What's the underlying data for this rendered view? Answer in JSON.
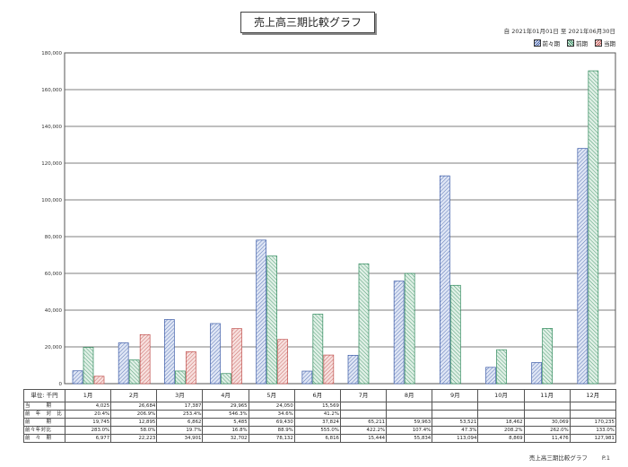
{
  "title": "売上高三期比較グラフ",
  "period": "自 2021年01月01日 至 2021年06月30日",
  "legend": [
    {
      "name": "前々期",
      "color": "#3d5ca8"
    },
    {
      "name": "前期",
      "color": "#2f8a5c"
    },
    {
      "name": "当期",
      "color": "#c0504d"
    }
  ],
  "unit_label": "単位: 千円",
  "table": {
    "row_labels": [
      "当　　　期",
      "前　年　対　比",
      "前　　　期",
      "前々年対比",
      "前　々　期"
    ],
    "rows": [
      [
        "4,025",
        "26,684",
        "17,387",
        "29,965",
        "24,050",
        "15,569",
        "",
        "",
        "",
        "",
        "",
        ""
      ],
      [
        "20.4%",
        "206.9%",
        "253.4%",
        "546.3%",
        "34.6%",
        "41.2%",
        "",
        "",
        "",
        "",
        "",
        ""
      ],
      [
        "19,745",
        "12,895",
        "6,862",
        "5,485",
        "69,430",
        "37,824",
        "65,211",
        "59,963",
        "53,521",
        "18,462",
        "30,069",
        "170,235"
      ],
      [
        "283.0%",
        "58.0%",
        "19.7%",
        "16.8%",
        "88.9%",
        "555.0%",
        "422.2%",
        "107.4%",
        "47.3%",
        "208.2%",
        "262.0%",
        "133.0%"
      ],
      [
        "6,977",
        "22,223",
        "34,901",
        "32,702",
        "78,132",
        "6,816",
        "15,444",
        "55,834",
        "113,094",
        "8,869",
        "11,476",
        "127,981"
      ]
    ]
  },
  "footer": {
    "title": "売上高三期比較グラフ",
    "page": "P.1"
  },
  "chart_data": {
    "type": "bar",
    "categories": [
      "1月",
      "2月",
      "3月",
      "4月",
      "5月",
      "6月",
      "7月",
      "8月",
      "9月",
      "10月",
      "11月",
      "12月"
    ],
    "series": [
      {
        "name": "前々期",
        "values": [
          6977,
          22223,
          34901,
          32702,
          78132,
          6816,
          15444,
          55834,
          113094,
          8869,
          11476,
          127981
        ]
      },
      {
        "name": "前期",
        "values": [
          19745,
          12895,
          6862,
          5485,
          69430,
          37824,
          65211,
          59963,
          53521,
          18462,
          30069,
          170235
        ]
      },
      {
        "name": "当期",
        "values": [
          4025,
          26684,
          17387,
          29965,
          24050,
          15569,
          null,
          null,
          null,
          null,
          null,
          null
        ]
      }
    ],
    "yticks": [
      "180,000",
      "160,000",
      "140,000",
      "120,000",
      "100,000",
      "80,000",
      "60,000",
      "40,000",
      "20,000",
      "0"
    ],
    "ylim": [
      0,
      180000
    ],
    "grid": true
  }
}
